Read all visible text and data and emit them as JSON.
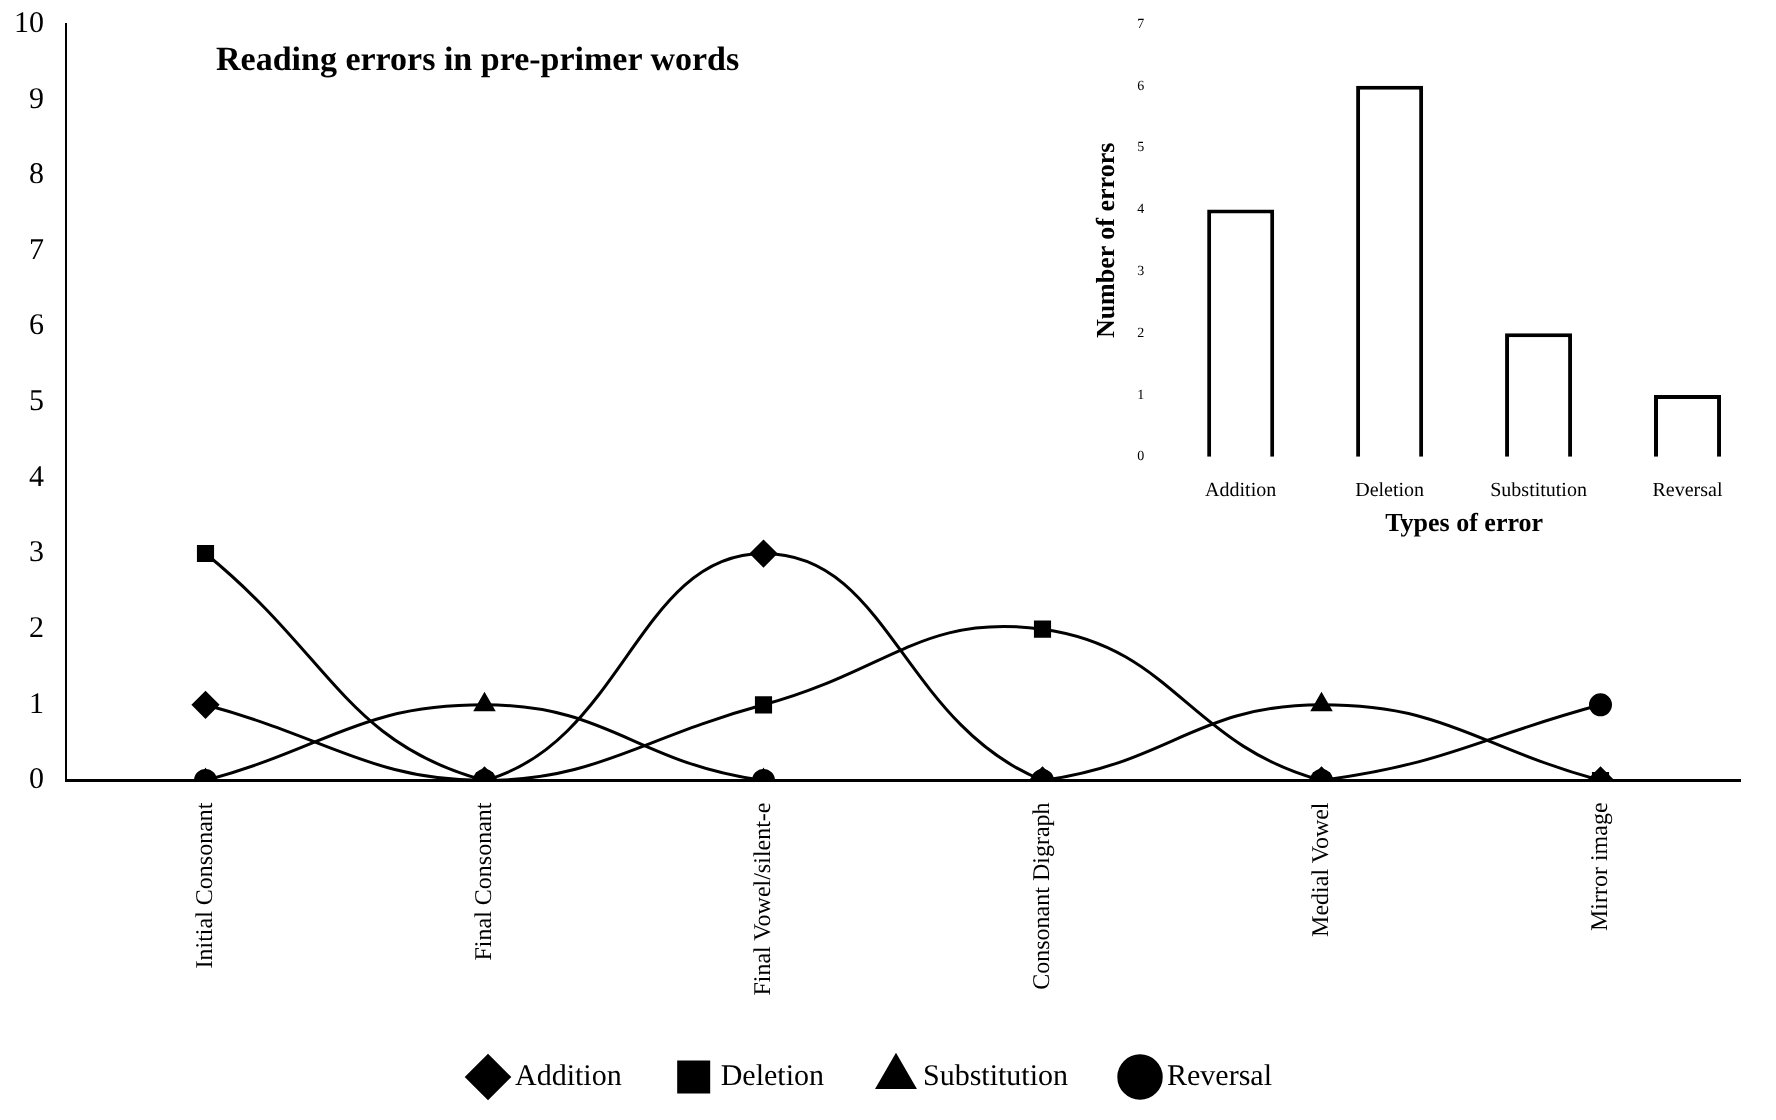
{
  "chart_data": [
    {
      "type": "line",
      "title": "Reading errors in pre-primer words",
      "categories": [
        "Initial Consonant",
        "Final Consonant",
        "Final Vowel/silent-e",
        "Consonant Digraph",
        "Medial Vowel",
        "Mirror image"
      ],
      "series": [
        {
          "name": "Addition",
          "color": "#000000",
          "marker": "diamond",
          "values": [
            1,
            0,
            3,
            0,
            0,
            0
          ]
        },
        {
          "name": "Deletion",
          "color": "#000000",
          "marker": "square",
          "values": [
            3,
            0,
            1,
            2,
            0,
            0
          ]
        },
        {
          "name": "Substitution",
          "color": "#000000",
          "marker": "triangle",
          "values": [
            0,
            1,
            0,
            0,
            1,
            0
          ]
        },
        {
          "name": "Reversal",
          "color": "#000000",
          "marker": "circle",
          "values": [
            0,
            0,
            0,
            0,
            0,
            1
          ]
        }
      ],
      "ylim": [
        0,
        10
      ],
      "yticks": [
        0,
        1,
        2,
        3,
        4,
        5,
        6,
        7,
        8,
        9,
        10
      ],
      "grid": false,
      "legend": "bottom"
    },
    {
      "type": "bar",
      "categories": [
        "Addition",
        "Deletion",
        "Substitution",
        "Reversal"
      ],
      "values": [
        4,
        6,
        2,
        1
      ],
      "color": "#ffffff",
      "xlabel": "Types of error",
      "ylabel": "Number of errors",
      "ylim": [
        0,
        7
      ],
      "yticks": [
        0,
        1,
        2,
        3,
        4,
        5,
        6,
        7
      ],
      "grid": false
    }
  ]
}
